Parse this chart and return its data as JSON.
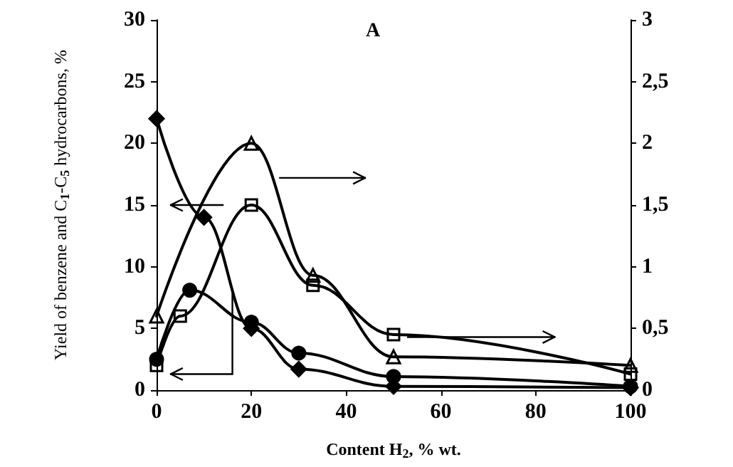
{
  "chart_data": {
    "type": "line",
    "title": "A",
    "xlabel": "Content H$_{2}$, % wt.",
    "ylabel": "Yield of benzene and C$_{1}$-C$_{5}$ hydrocarbons, %",
    "xlim": [
      0,
      100
    ],
    "xticks": [
      0,
      20,
      40,
      60,
      80,
      100
    ],
    "ylim": [
      0,
      30
    ],
    "yticks": [
      0,
      5,
      10,
      15,
      20,
      25,
      30
    ],
    "y2lim": [
      0,
      3
    ],
    "y2ticks": [
      0,
      {
        "value": 0.5,
        "label": "0,5"
      },
      1,
      {
        "value": 1.5,
        "label": "1,5"
      },
      2,
      {
        "value": 2.5,
        "label": "2,5"
      },
      3
    ],
    "grid": false,
    "series": [
      {
        "color": "#000000",
        "marker": "diamond",
        "x": [
          0,
          10,
          20,
          30,
          50,
          100
        ],
        "values": [
          22,
          14,
          5,
          1.7,
          0.3,
          0.2
        ]
      },
      {
        "color": "#000000",
        "marker": "circle",
        "x": [
          0,
          7,
          20,
          30,
          50,
          100
        ],
        "values": [
          2.5,
          8.1,
          5.5,
          3,
          1.1,
          0.3
        ]
      },
      {
        "color": "#000000",
        "marker": "triangle",
        "axis": "y2",
        "x": [
          0,
          20,
          33,
          50,
          100
        ],
        "values": [
          0.6,
          2,
          0.93,
          0.27,
          0.2
        ]
      },
      {
        "color": "#000000",
        "marker": "square",
        "axis": "y2",
        "x": [
          0,
          5,
          20,
          33,
          50,
          100
        ],
        "values": [
          0.2,
          0.6,
          1.5,
          0.85,
          0.45,
          0.13
        ]
      }
    ]
  }
}
